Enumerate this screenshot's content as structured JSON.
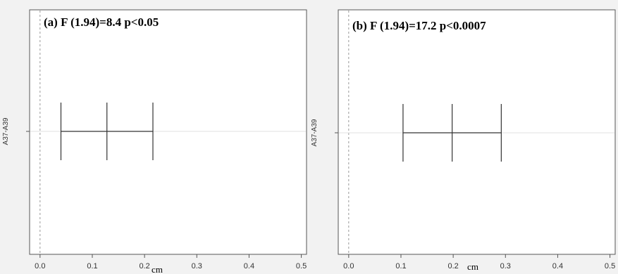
{
  "chart_data": [
    {
      "type": "errorbar",
      "title": "(a) F (1.94)=8.4 p<0.05",
      "xlabel": "cm",
      "ylabel": "",
      "categories": [
        "A37-A39"
      ],
      "series": [
        {
          "lower": 0.04,
          "estimate": 0.128,
          "upper": 0.216
        }
      ],
      "x_ticks": [
        "0.0",
        "0.1",
        "0.2",
        "0.3",
        "0.4",
        "0.5"
      ],
      "xlim": [
        -0.02,
        0.51
      ],
      "reference_line_x": 0,
      "grid": false
    },
    {
      "type": "errorbar",
      "title": "(b) F (1.94)=17.2 p<0.0007",
      "xlabel": "cm",
      "ylabel": "",
      "categories": [
        "A37-A39"
      ],
      "series": [
        {
          "lower": 0.104,
          "estimate": 0.198,
          "upper": 0.292
        }
      ],
      "x_ticks": [
        "0.0",
        "0.1",
        "0.2",
        "0.3",
        "0.4",
        "0.5"
      ],
      "xlim": [
        -0.02,
        0.51
      ],
      "reference_line_x": 0,
      "grid": false
    }
  ],
  "colors": {
    "background": "#f2f2f2",
    "plot_background": "#ffffff",
    "frame": "#555555",
    "marks": "#333333",
    "reference_line": "#999999",
    "category_line": "#e0e0e0"
  }
}
